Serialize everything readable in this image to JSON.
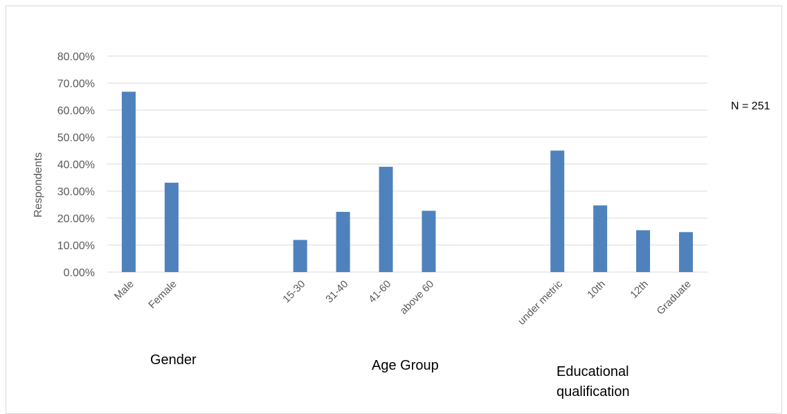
{
  "chart_data": {
    "type": "bar",
    "ylabel": "Respondents",
    "ylim": [
      0,
      0.8
    ],
    "yticks": [
      "0.00%",
      "10.00%",
      "20.00%",
      "30.00%",
      "40.00%",
      "50.00%",
      "60.00%",
      "70.00%",
      "80.00%"
    ],
    "grid": true,
    "color": "#4f81bd",
    "categories": [
      "Male",
      "Female",
      "",
      "",
      "15-30",
      "31-40",
      "41-60",
      "above 60",
      "",
      "",
      "under metric",
      "10th",
      "12th",
      "Graduate"
    ],
    "values": [
      0.668,
      0.331,
      null,
      null,
      0.119,
      0.223,
      0.39,
      0.227,
      null,
      null,
      0.45,
      0.247,
      0.155,
      0.148
    ],
    "groups": [
      {
        "label": "Gender",
        "categories": [
          "Male",
          "Female"
        ]
      },
      {
        "label": "Age Group",
        "categories": [
          "15-30",
          "31-40",
          "41-60",
          "above 60"
        ]
      },
      {
        "label": "Educational qualification",
        "categories": [
          "under metric",
          "10th",
          "12th",
          "Graduate"
        ]
      }
    ],
    "annotation": "N = 251"
  },
  "labels": {
    "group_gender": "Gender",
    "group_age": "Age Group",
    "group_edu": "Educational qualification",
    "n_label": "N = 251"
  }
}
